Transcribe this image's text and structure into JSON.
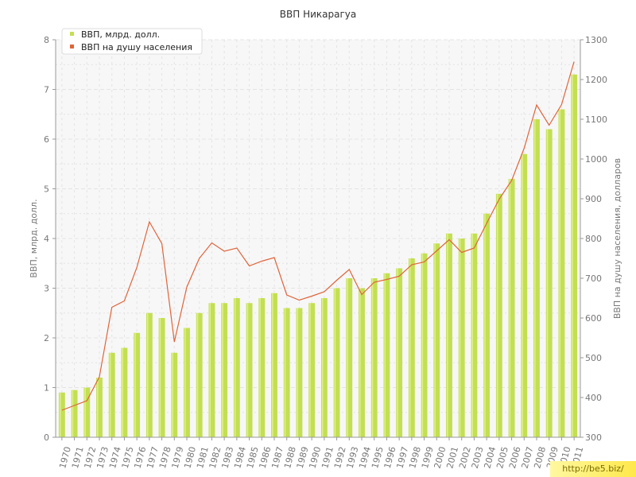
{
  "colors": {
    "bar": "#c3df52",
    "bar_highlight": "#dff08a",
    "line": "#e0643a",
    "axis": "#999999",
    "grid": "#e4e4e4",
    "plot_bg": "#f7f7f7"
  },
  "watermark": "http://be5.biz/",
  "chart_data": {
    "type": "bar+line",
    "title": "ВВП Никарагуа",
    "left_axis_label": "ВВП, млрд. долл.",
    "right_axis_label": "ВВП на душу населения, долларов",
    "left_ylim": [
      0,
      8
    ],
    "left_ticks": [
      0,
      1,
      2,
      3,
      4,
      5,
      6,
      7,
      8
    ],
    "right_ylim": [
      300,
      1300
    ],
    "right_ticks": [
      300,
      400,
      500,
      600,
      700,
      800,
      900,
      1000,
      1100,
      1200,
      1300
    ],
    "grid": true,
    "legend_position": "top-left",
    "categories": [
      "1970",
      "1971",
      "1972",
      "1973",
      "1974",
      "1975",
      "1976",
      "1977",
      "1978",
      "1979",
      "1980",
      "1981",
      "1982",
      "1983",
      "1984",
      "1985",
      "1986",
      "1987",
      "1988",
      "1989",
      "1990",
      "1991",
      "1992",
      "1993",
      "1994",
      "1995",
      "1996",
      "1997",
      "1998",
      "1999",
      "2000",
      "2001",
      "2002",
      "2003",
      "2004",
      "2005",
      "2006",
      "2007",
      "2008",
      "2009",
      "2010",
      "2011"
    ],
    "series": [
      {
        "name": "ВВП, млрд. долл.",
        "type": "bar",
        "axis": "left",
        "values": [
          0.9,
          0.95,
          1.0,
          1.2,
          1.7,
          1.8,
          2.1,
          2.5,
          2.4,
          1.7,
          2.2,
          2.5,
          2.7,
          2.7,
          2.8,
          2.7,
          2.8,
          2.9,
          2.6,
          2.6,
          2.7,
          2.8,
          3.0,
          3.2,
          3.0,
          3.2,
          3.3,
          3.4,
          3.6,
          3.7,
          3.9,
          4.1,
          4.0,
          4.1,
          4.5,
          4.9,
          5.2,
          5.7,
          6.4,
          6.2,
          6.6,
          7.3
        ]
      },
      {
        "name": "ВВП на душу населения",
        "type": "line",
        "axis": "right",
        "values": [
          368,
          380,
          392,
          452,
          627,
          643,
          727,
          842,
          787,
          540,
          678,
          750,
          789,
          768,
          776,
          731,
          743,
          752,
          658,
          645,
          655,
          666,
          695,
          722,
          659,
          690,
          697,
          705,
          734,
          741,
          769,
          797,
          765,
          776,
          838,
          899,
          946,
          1027,
          1136,
          1085,
          1137,
          1245
        ]
      }
    ]
  }
}
